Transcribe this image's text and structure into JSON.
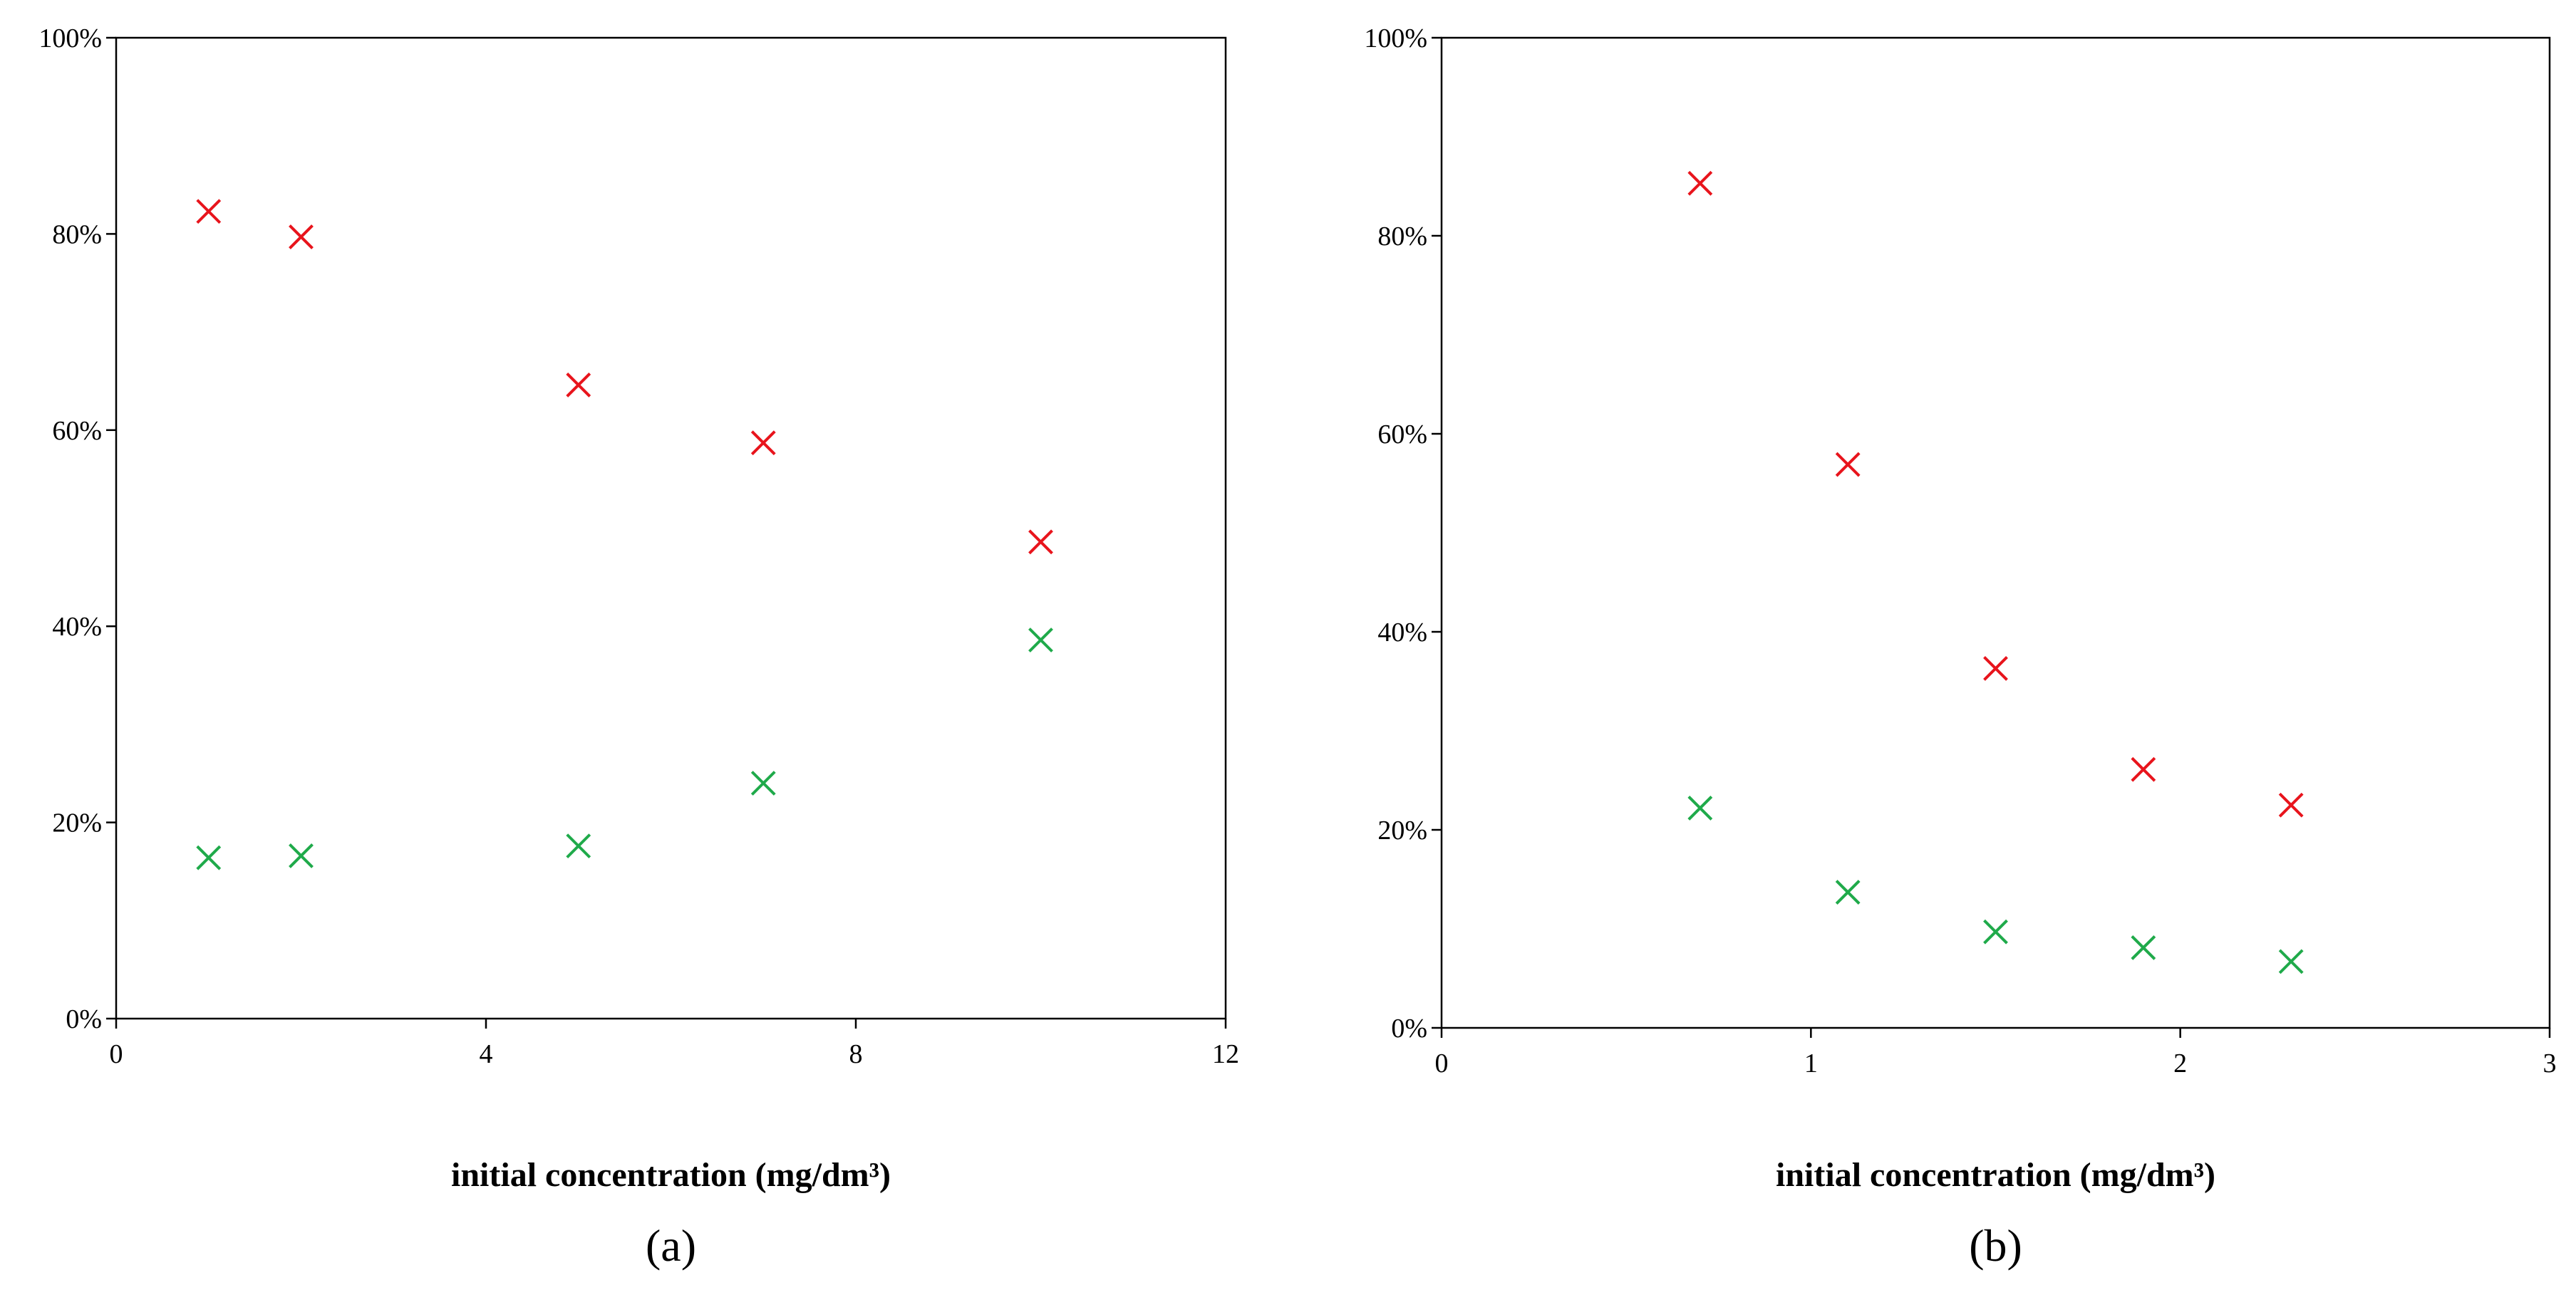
{
  "chart_data": [
    {
      "type": "scatter",
      "panel_label": "(a)",
      "xlabel": "initial concentration (mg/dm³)",
      "ylabel": "",
      "xlim": [
        0,
        12
      ],
      "ylim": [
        0,
        100
      ],
      "xticks": [
        0,
        4,
        8,
        12
      ],
      "yticks": [
        0,
        20,
        40,
        60,
        80,
        100
      ],
      "y_format": "percent",
      "grid": false,
      "legend": "none",
      "marker": "x",
      "series": [
        {
          "color": "#e8141c",
          "x": [
            1,
            2,
            5,
            7,
            10
          ],
          "y": [
            82.3,
            79.7,
            64.6,
            58.7,
            48.6
          ]
        },
        {
          "color": "#1faa4a",
          "x": [
            1,
            2,
            5,
            7,
            10
          ],
          "y": [
            16.4,
            16.6,
            17.6,
            24.0,
            38.6
          ]
        }
      ]
    },
    {
      "type": "scatter",
      "panel_label": "(b)",
      "xlabel": "initial concentration (mg/dm³)",
      "ylabel": "",
      "xlim": [
        0,
        3
      ],
      "ylim": [
        0,
        100
      ],
      "xticks": [
        0,
        1,
        2,
        3
      ],
      "yticks": [
        0,
        20,
        40,
        60,
        80,
        100
      ],
      "y_format": "percent",
      "grid": false,
      "legend": "none",
      "marker": "x",
      "series": [
        {
          "color": "#e8141c",
          "x": [
            0.7,
            1.1,
            1.5,
            1.9,
            2.3
          ],
          "y": [
            85.3,
            56.9,
            36.3,
            26.1,
            22.5
          ]
        },
        {
          "color": "#1faa4a",
          "x": [
            0.7,
            1.1,
            1.5,
            1.9,
            2.3
          ],
          "y": [
            22.2,
            13.7,
            9.7,
            8.1,
            6.7
          ]
        }
      ]
    }
  ]
}
